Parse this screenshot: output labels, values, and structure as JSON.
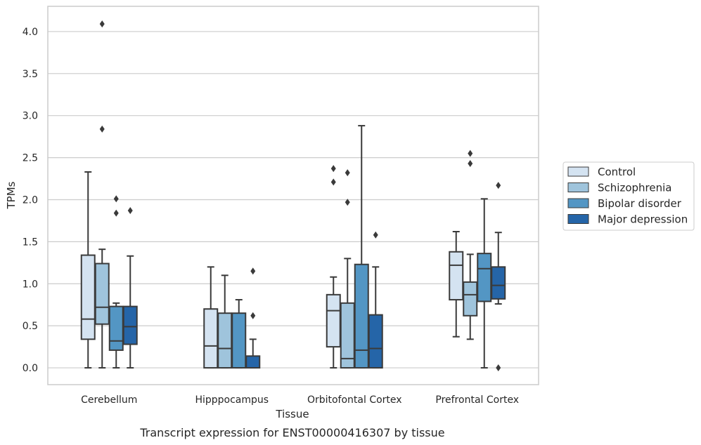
{
  "caption": "Transcript expression for ENST00000416307 by tissue",
  "chart_data": {
    "type": "boxplot",
    "title": "",
    "xlabel": "Tissue",
    "ylabel": "TPMs",
    "ylim": [
      -0.2,
      4.3
    ],
    "yticks": [
      "0.0",
      "0.5",
      "1.0",
      "1.5",
      "2.0",
      "2.5",
      "3.0",
      "3.5",
      "4.0"
    ],
    "grid": "horizontal",
    "legend_position": "right",
    "categories": [
      "Cerebellum",
      "Hipppocampus",
      "Orbitofontal Cortex",
      "Prefrontal Cortex"
    ],
    "series": [
      {
        "name": "Control",
        "color": "#d4e3f1",
        "boxes": [
          {
            "whislo": 0.0,
            "q1": 0.34,
            "med": 0.58,
            "q3": 1.34,
            "whishi": 2.33,
            "fliers": []
          },
          {
            "whislo": 0.0,
            "q1": 0.0,
            "med": 0.26,
            "q3": 0.7,
            "whishi": 1.2,
            "fliers": []
          },
          {
            "whislo": 0.0,
            "q1": 0.25,
            "med": 0.68,
            "q3": 0.87,
            "whishi": 1.08,
            "fliers": [
              2.21,
              2.37
            ]
          },
          {
            "whislo": 0.37,
            "q1": 0.81,
            "med": 1.22,
            "q3": 1.38,
            "whishi": 1.62,
            "fliers": []
          }
        ]
      },
      {
        "name": "Schizophrenia",
        "color": "#9fc4dc",
        "boxes": [
          {
            "whislo": 0.0,
            "q1": 0.52,
            "med": 0.72,
            "q3": 1.24,
            "whishi": 1.41,
            "fliers": [
              2.84,
              4.09
            ]
          },
          {
            "whislo": 0.0,
            "q1": 0.0,
            "med": 0.23,
            "q3": 0.65,
            "whishi": 1.1,
            "fliers": []
          },
          {
            "whislo": 0.0,
            "q1": 0.0,
            "med": 0.11,
            "q3": 0.77,
            "whishi": 1.3,
            "fliers": [
              1.97,
              2.32
            ]
          },
          {
            "whislo": 0.34,
            "q1": 0.62,
            "med": 0.87,
            "q3": 1.02,
            "whishi": 1.35,
            "fliers": [
              2.43,
              2.55
            ]
          }
        ]
      },
      {
        "name": "Bipolar disorder",
        "color": "#5396c4",
        "boxes": [
          {
            "whislo": 0.0,
            "q1": 0.21,
            "med": 0.32,
            "q3": 0.73,
            "whishi": 0.77,
            "fliers": [
              1.84,
              2.01
            ]
          },
          {
            "whislo": 0.0,
            "q1": 0.0,
            "med": 0.0,
            "q3": 0.65,
            "whishi": 0.81,
            "fliers": []
          },
          {
            "whislo": 0.0,
            "q1": 0.0,
            "med": 0.21,
            "q3": 1.23,
            "whishi": 2.88,
            "fliers": []
          },
          {
            "whislo": 0.0,
            "q1": 0.79,
            "med": 1.18,
            "q3": 1.36,
            "whishi": 2.01,
            "fliers": []
          }
        ]
      },
      {
        "name": "Major depression",
        "color": "#2565a8",
        "boxes": [
          {
            "whislo": 0.0,
            "q1": 0.28,
            "med": 0.49,
            "q3": 0.73,
            "whishi": 1.33,
            "fliers": [
              1.87
            ]
          },
          {
            "whislo": 0.0,
            "q1": 0.0,
            "med": 0.0,
            "q3": 0.14,
            "whishi": 0.34,
            "fliers": [
              0.62,
              1.15
            ]
          },
          {
            "whislo": 0.0,
            "q1": 0.0,
            "med": 0.23,
            "q3": 0.63,
            "whishi": 1.2,
            "fliers": [
              1.58
            ]
          },
          {
            "whislo": 0.76,
            "q1": 0.82,
            "med": 0.98,
            "q3": 1.2,
            "whishi": 1.61,
            "fliers": [
              0.0,
              2.17
            ]
          }
        ]
      }
    ]
  }
}
